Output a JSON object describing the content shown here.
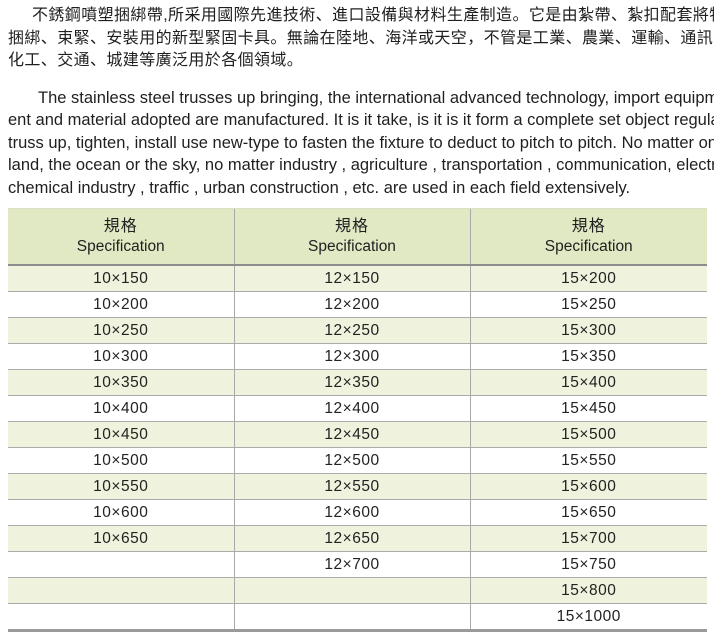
{
  "intro_zh": {
    "lines": [
      "不銹鋼噴塑捆綁帶,所采用國際先進技術、進口設備與材料生產制造。它是由紮帶、紮扣配套將物體固定、",
      "捆綁、束緊、安裝用的新型緊固卡具。無論在陸地、海洋或天空，不管是工業、農業、運輸、通訊、電力、",
      "化工、交通、城建等廣泛用於各個領域。"
    ]
  },
  "intro_en": {
    "lines": [
      "The stainless steel  trusses up bringing, the international advanced technology, import equipm-",
      "ent and material adopted are manufactured. It is it take, is it is it form a complete set object regular,",
      "truss up, tighten, install use new-type to fasten the fixture to deduct to pitch to pitch. No matter on the",
      "land, the ocean or the sky, no matter industry , agriculture , transportation , communication, electricity,",
      "chemical industry , traffic , urban construction , etc. are used in each field extensively."
    ]
  },
  "table": {
    "headers": [
      {
        "zh": "規格",
        "en": "Specification"
      },
      {
        "zh": "規格",
        "en": "Specification"
      },
      {
        "zh": "規格",
        "en": "Specification"
      }
    ],
    "rows": [
      [
        "10×150",
        "12×150",
        "15×200"
      ],
      [
        "10×200",
        "12×200",
        "15×250"
      ],
      [
        "10×250",
        "12×250",
        "15×300"
      ],
      [
        "10×300",
        "12×300",
        "15×350"
      ],
      [
        "10×350",
        "12×350",
        "15×400"
      ],
      [
        "10×400",
        "12×400",
        "15×450"
      ],
      [
        "10×450",
        "12×450",
        "15×500"
      ],
      [
        "10×500",
        "12×500",
        "15×550"
      ],
      [
        "10×550",
        "12×550",
        "15×600"
      ],
      [
        "10×600",
        "12×600",
        "15×650"
      ],
      [
        "10×650",
        "12×650",
        "15×700"
      ],
      [
        "",
        "12×700",
        "15×750"
      ],
      [
        "",
        "",
        "15×800"
      ],
      [
        "",
        "",
        "15×1000"
      ]
    ]
  },
  "colors": {
    "header_bg": "#e0e9c4",
    "row_stripe_bg": "#eff2dd",
    "row_plain_bg": "#ffffff",
    "heavy_border": "#8d8d8d",
    "bottom_border": "#9a9a9a",
    "light_border": "#ababab",
    "text": "#1f1f1f"
  }
}
